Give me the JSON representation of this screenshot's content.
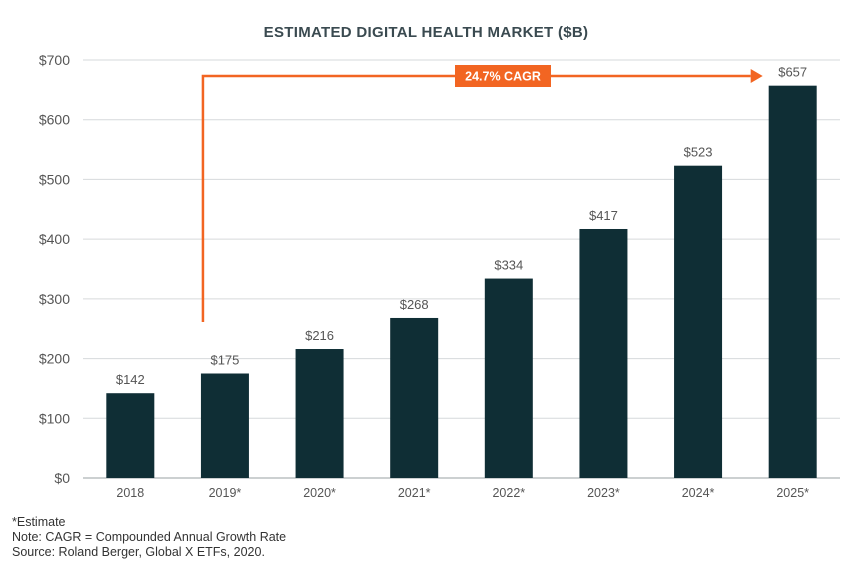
{
  "chart_data": {
    "type": "bar",
    "title": "ESTIMATED DIGITAL HEALTH MARKET ($B)",
    "categories": [
      "2018",
      "2019*",
      "2020*",
      "2021*",
      "2022*",
      "2023*",
      "2024*",
      "2025*"
    ],
    "values": [
      142,
      175,
      216,
      268,
      334,
      417,
      523,
      657
    ],
    "value_labels": [
      "$142",
      "$175",
      "$216",
      "$268",
      "$334",
      "$417",
      "$523",
      "$657"
    ],
    "ylim": [
      0,
      700
    ],
    "yticks": [
      0,
      100,
      200,
      300,
      400,
      500,
      600,
      700
    ],
    "ytick_labels": [
      "$0",
      "$100",
      "$200",
      "$300",
      "$400",
      "$500",
      "$600",
      "$700"
    ],
    "grid": true,
    "bar_color": "#0f2e35",
    "annotation": {
      "text": "24.7% CAGR",
      "from_category": "2019*",
      "to_category": "2025*",
      "color": "#f26522"
    }
  },
  "footnotes": {
    "estimate": "*Estimate",
    "note": "Note: CAGR = Compounded Annual Growth Rate",
    "source": "Source: Roland Berger, Global X ETFs, 2020."
  }
}
